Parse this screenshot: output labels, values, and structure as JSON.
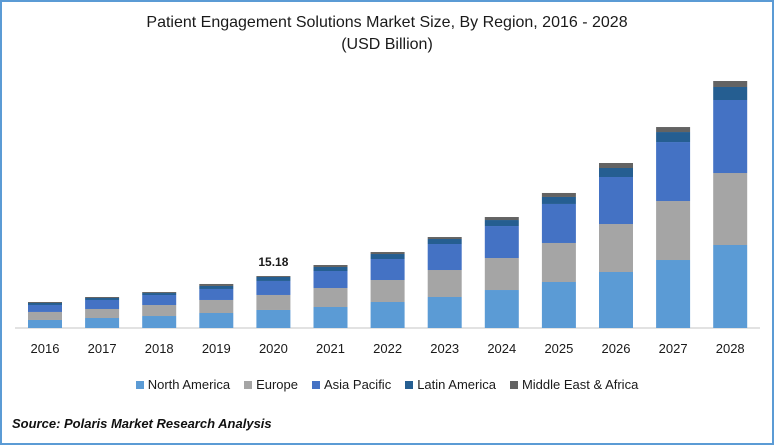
{
  "chart_data": {
    "type": "bar",
    "stacked": true,
    "title": "Patient Engagement Solutions Market Size, By Region, 2016 - 2028",
    "subtitle": "(USD Billion)",
    "xlabel": "",
    "ylabel": "",
    "grid": false,
    "legend_position": "bottom",
    "categories": [
      "2016",
      "2017",
      "2018",
      "2019",
      "2020",
      "2021",
      "2022",
      "2023",
      "2024",
      "2025",
      "2026",
      "2027",
      "2028"
    ],
    "series": [
      {
        "name": "North America",
        "color": "#5b9bd5",
        "values": [
          2.34,
          2.92,
          3.5,
          4.38,
          5.26,
          6.13,
          7.59,
          9.05,
          11.09,
          13.43,
          16.35,
          19.85,
          24.23
        ]
      },
      {
        "name": "Europe",
        "color": "#a5a5a5",
        "values": [
          2.34,
          2.63,
          3.21,
          3.8,
          4.38,
          5.55,
          6.42,
          7.88,
          9.34,
          11.39,
          14.01,
          17.22,
          21.02
        ]
      },
      {
        "name": "Asia Pacific",
        "color": "#4472c4",
        "values": [
          2.04,
          2.63,
          2.92,
          3.21,
          4.09,
          4.96,
          6.13,
          7.59,
          9.34,
          11.39,
          13.72,
          17.22,
          21.31
        ]
      },
      {
        "name": "Latin America",
        "color": "#255e91",
        "values": [
          0.58,
          0.58,
          0.58,
          0.88,
          1.17,
          1.17,
          1.46,
          1.46,
          1.75,
          2.04,
          2.63,
          2.92,
          3.8
        ]
      },
      {
        "name": "Middle East & Africa",
        "color": "#636363",
        "values": [
          0.29,
          0.29,
          0.29,
          0.58,
          0.28,
          0.58,
          0.58,
          0.58,
          0.88,
          1.17,
          1.46,
          1.46,
          1.75
        ]
      }
    ],
    "ylim": [
      0,
      72.11
    ],
    "annotations": [
      {
        "category": "2020",
        "text": "15.18"
      }
    ]
  },
  "source": "Source: Polaris  Market Research Analysis"
}
